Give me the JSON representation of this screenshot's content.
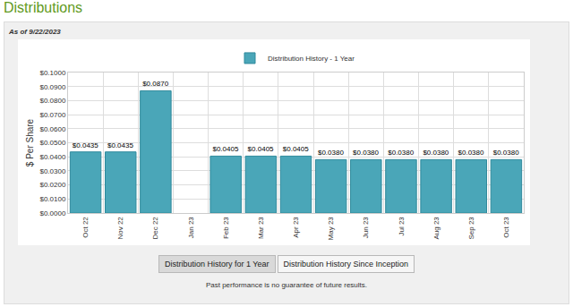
{
  "header": {
    "title": "Distributions",
    "as_of": "As of 9/22/2023"
  },
  "chart_data": {
    "type": "bar",
    "y_label": "$ Per Share",
    "categories": [
      "Oct 22",
      "Nov 22",
      "Dec 22",
      "Jan 23",
      "Feb 23",
      "Mar 23",
      "Apr 23",
      "May 23",
      "Jun 23",
      "Jul 23",
      "Aug 23",
      "Sep 23",
      "Oct 23"
    ],
    "series": [
      {
        "name": "Distribution History - 1 Year",
        "color": "#4aa6b8",
        "values": [
          0.0435,
          0.0435,
          0.087,
          null,
          0.0405,
          0.0405,
          0.0405,
          0.038,
          0.038,
          0.038,
          0.038,
          0.038,
          0.038
        ],
        "value_labels": [
          "$0.0435",
          "$0.0435",
          "$0.0870",
          null,
          "$0.0405",
          "$0.0405",
          "$0.0405",
          "$0.0380",
          "$0.0380",
          "$0.0380",
          "$0.0380",
          "$0.0380",
          "$0.0380"
        ]
      }
    ],
    "ylim": [
      0,
      0.1
    ],
    "yticks": [
      {
        "value": 0,
        "label": "$0.0000"
      },
      {
        "value": 0.01,
        "label": "$0.0100"
      },
      {
        "value": 0.02,
        "label": "$0.0200"
      },
      {
        "value": 0.03,
        "label": "$0.0300"
      },
      {
        "value": 0.04,
        "label": "$0.0400"
      },
      {
        "value": 0.05,
        "label": "$0.0500"
      },
      {
        "value": 0.06,
        "label": "$0.0600"
      },
      {
        "value": 0.07,
        "label": "$0.0700"
      },
      {
        "value": 0.08,
        "label": "$0.0800"
      },
      {
        "value": 0.09,
        "label": "$0.0900"
      },
      {
        "value": 0.1,
        "label": "$0.1000"
      }
    ],
    "grid": true,
    "legend": "top",
    "data_labels": true
  },
  "buttons": [
    "Distribution History for 1 Year",
    "Distribution History Since Inception"
  ],
  "footnote": "Past performance is no guarantee of future results."
}
